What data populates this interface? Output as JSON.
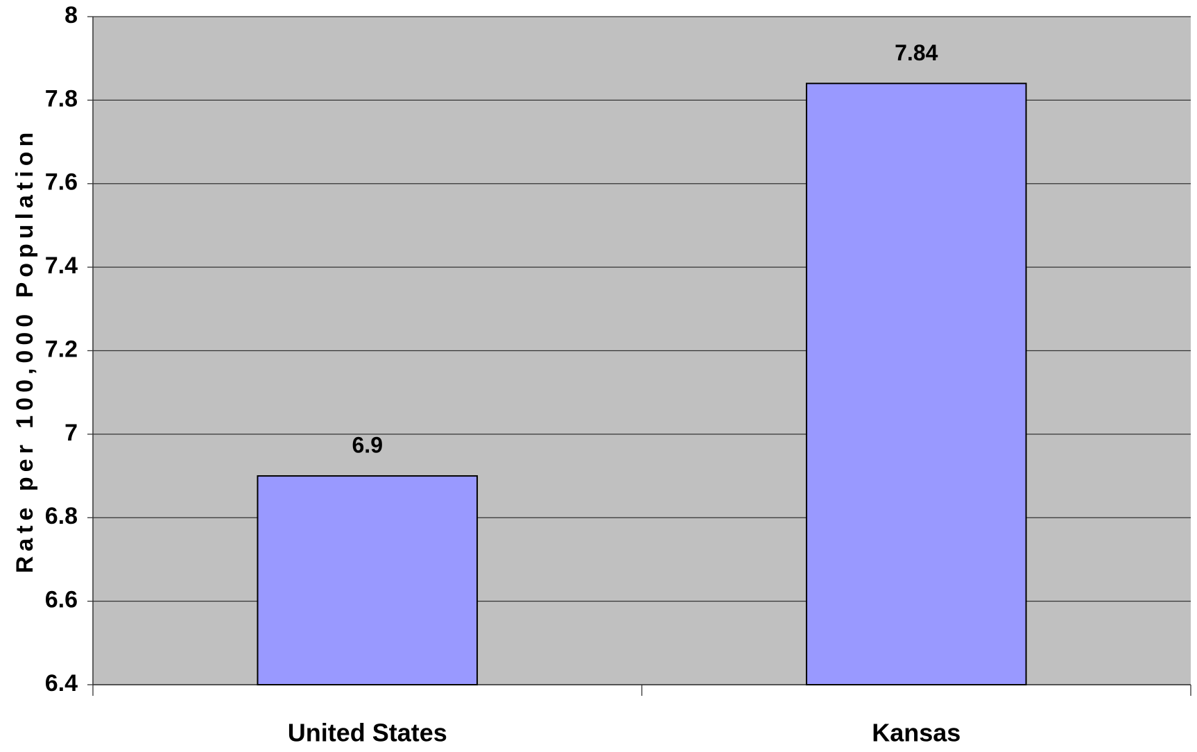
{
  "chart_data": {
    "type": "bar",
    "y_label": "Rate per 100,000 Population",
    "categories": [
      "United States",
      "Kansas"
    ],
    "values": [
      6.9,
      7.84
    ],
    "color": "#9999ff",
    "ylim": [
      6.4,
      8
    ],
    "yticks": [
      6.4,
      6.6,
      6.8,
      7,
      7.2,
      7.4,
      7.6,
      7.8,
      8
    ],
    "grid": true,
    "plot_background": "#c0c0c0"
  }
}
